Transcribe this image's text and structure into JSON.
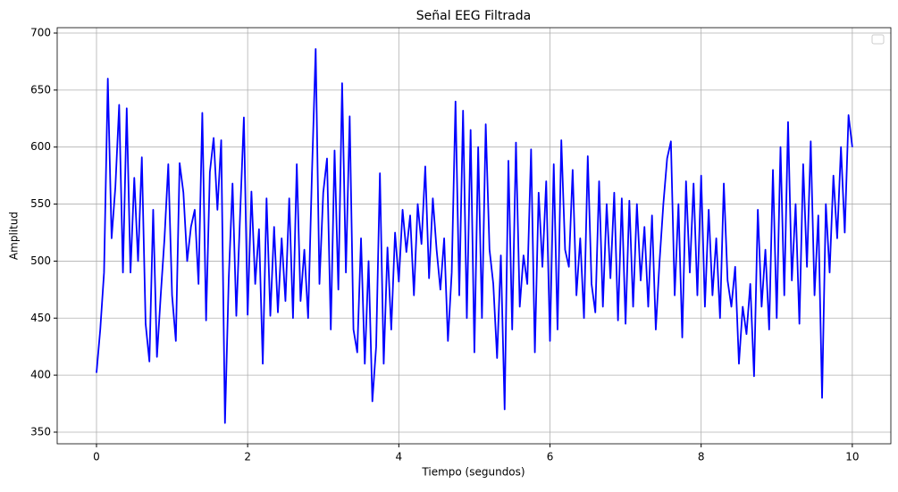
{
  "chart_data": {
    "type": "line",
    "title": "Señal EEG Filtrada",
    "xlabel": "Tiempo (segundos)",
    "ylabel": "Amplitud",
    "x": [
      0,
      0.05,
      0.1,
      0.15,
      0.2,
      0.25,
      0.3,
      0.35,
      0.4,
      0.45,
      0.5,
      0.55,
      0.6,
      0.65,
      0.7,
      0.75,
      0.8,
      0.85,
      0.9,
      0.95,
      1,
      1.05,
      1.1,
      1.15,
      1.2,
      1.25,
      1.3,
      1.35,
      1.4,
      1.45,
      1.5,
      1.55,
      1.6,
      1.65,
      1.7,
      1.75,
      1.8,
      1.85,
      1.9,
      1.95,
      2,
      2.05,
      2.1,
      2.15,
      2.2,
      2.25,
      2.3,
      2.35,
      2.4,
      2.45,
      2.5,
      2.55,
      2.6,
      2.65,
      2.7,
      2.75,
      2.8,
      2.85,
      2.9,
      2.95,
      3,
      3.05,
      3.1,
      3.15,
      3.2,
      3.25,
      3.3,
      3.35,
      3.4,
      3.45,
      3.5,
      3.55,
      3.6,
      3.65,
      3.7,
      3.75,
      3.8,
      3.85,
      3.9,
      3.95,
      4,
      4.05,
      4.1,
      4.15,
      4.2,
      4.25,
      4.3,
      4.35,
      4.4,
      4.45,
      4.5,
      4.55,
      4.6,
      4.65,
      4.7,
      4.75,
      4.8,
      4.85,
      4.9,
      4.95,
      5,
      5.05,
      5.1,
      5.15,
      5.2,
      5.25,
      5.3,
      5.35,
      5.4,
      5.45,
      5.5,
      5.55,
      5.6,
      5.65,
      5.7,
      5.75,
      5.8,
      5.85,
      5.9,
      5.95,
      6,
      6.05,
      6.1,
      6.15,
      6.2,
      6.25,
      6.3,
      6.35,
      6.4,
      6.45,
      6.5,
      6.55,
      6.6,
      6.65,
      6.7,
      6.75,
      6.8,
      6.85,
      6.9,
      6.95,
      7,
      7.05,
      7.1,
      7.15,
      7.2,
      7.25,
      7.3,
      7.35,
      7.4,
      7.45,
      7.5,
      7.55,
      7.6,
      7.65,
      7.7,
      7.75,
      7.8,
      7.85,
      7.9,
      7.95,
      8,
      8.05,
      8.1,
      8.15,
      8.2,
      8.25,
      8.3,
      8.35,
      8.4,
      8.45,
      8.5,
      8.55,
      8.6,
      8.65,
      8.7,
      8.75,
      8.8,
      8.85,
      8.9,
      8.95,
      9,
      9.05,
      9.1,
      9.15,
      9.2,
      9.25,
      9.3,
      9.35,
      9.4,
      9.45,
      9.5,
      9.55,
      9.6,
      9.65,
      9.7,
      9.75,
      9.8,
      9.85,
      9.9,
      9.95,
      10
    ],
    "series": [
      {
        "color": "#0000ff",
        "values": [
          402,
          440,
          490,
          660,
          520,
          565,
          637,
          490,
          634,
          490,
          573,
          500,
          591,
          445,
          412,
          545,
          416,
          470,
          520,
          585,
          470,
          430,
          586,
          560,
          500,
          530,
          545,
          480,
          630,
          448,
          578,
          608,
          545,
          606,
          358,
          485,
          568,
          452,
          540,
          626,
          453,
          561,
          480,
          528,
          410,
          555,
          452,
          530,
          455,
          520,
          465,
          555,
          450,
          585,
          465,
          510,
          450,
          575,
          686,
          480,
          560,
          590,
          440,
          597,
          475,
          656,
          490,
          627,
          440,
          420,
          520,
          410,
          500,
          377,
          425,
          577,
          410,
          512,
          440,
          525,
          482,
          545,
          508,
          540,
          470,
          550,
          515,
          583,
          485,
          555,
          510,
          475,
          520,
          430,
          490,
          640,
          470,
          632,
          450,
          615,
          420,
          600,
          450,
          620,
          510,
          480,
          415,
          505,
          370,
          588,
          440,
          604,
          460,
          505,
          480,
          598,
          420,
          560,
          495,
          570,
          430,
          585,
          440,
          606,
          510,
          495,
          580,
          470,
          520,
          450,
          592,
          480,
          455,
          570,
          460,
          550,
          485,
          560,
          448,
          555,
          445,
          553,
          460,
          550,
          483,
          530,
          460,
          540,
          440,
          500,
          550,
          590,
          605,
          470,
          550,
          433,
          570,
          490,
          568,
          470,
          575,
          460,
          545,
          470,
          520,
          450,
          568,
          483,
          460,
          495,
          410,
          460,
          436,
          480,
          399,
          545,
          460,
          510,
          440,
          580,
          450,
          600,
          470,
          622,
          483,
          550,
          445,
          585,
          495,
          605,
          470,
          540,
          380,
          550,
          490,
          575,
          520,
          600,
          525,
          628,
          600
        ]
      }
    ],
    "xlim": [
      -0.52,
      10.51
    ],
    "ylim": [
      339.8,
      704.7
    ],
    "xticks": [
      0,
      2,
      4,
      6,
      8,
      10
    ],
    "yticks": [
      350,
      400,
      450,
      500,
      550,
      600,
      650,
      700
    ],
    "grid": true
  }
}
